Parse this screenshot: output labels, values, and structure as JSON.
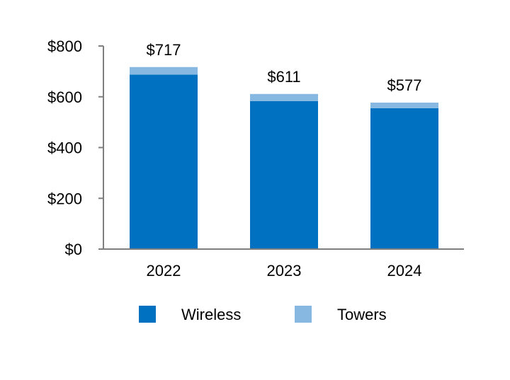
{
  "chart_data": {
    "type": "bar",
    "stacked": true,
    "categories": [
      "2022",
      "2023",
      "2024"
    ],
    "series": [
      {
        "name": "Wireless",
        "values": [
          687,
          583,
          555
        ],
        "color": "#0070C0"
      },
      {
        "name": "Towers",
        "values": [
          30,
          28,
          22
        ],
        "color": "#86B8E2"
      }
    ],
    "totals": [
      717,
      611,
      577
    ],
    "total_labels": [
      "$717",
      "$611",
      "$577"
    ],
    "ylim": [
      0,
      800
    ],
    "yticks": [
      0,
      200,
      400,
      600,
      800
    ],
    "ytick_labels": [
      "$0",
      "$200",
      "$400",
      "$600",
      "$800"
    ],
    "title": "",
    "xlabel": "",
    "ylabel": "",
    "legend_position": "bottom",
    "grid": false,
    "axis_color": "#7F7F7F"
  }
}
